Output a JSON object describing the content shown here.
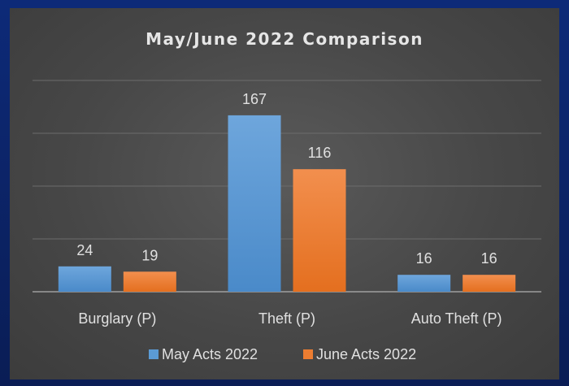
{
  "chart_data": {
    "type": "bar",
    "title": "May/June 2022 Comparison",
    "categories": [
      "Burglary (P)",
      "Theft (P)",
      "Auto Theft (P)"
    ],
    "series": [
      {
        "name": "May Acts 2022",
        "values": [
          24,
          167,
          16
        ],
        "color": "#5b9bd5"
      },
      {
        "name": "June Acts 2022",
        "values": [
          19,
          116,
          16
        ],
        "color": "#ed7d31"
      }
    ],
    "ylim": [
      0,
      200
    ],
    "grid": true,
    "legend_position": "bottom"
  }
}
